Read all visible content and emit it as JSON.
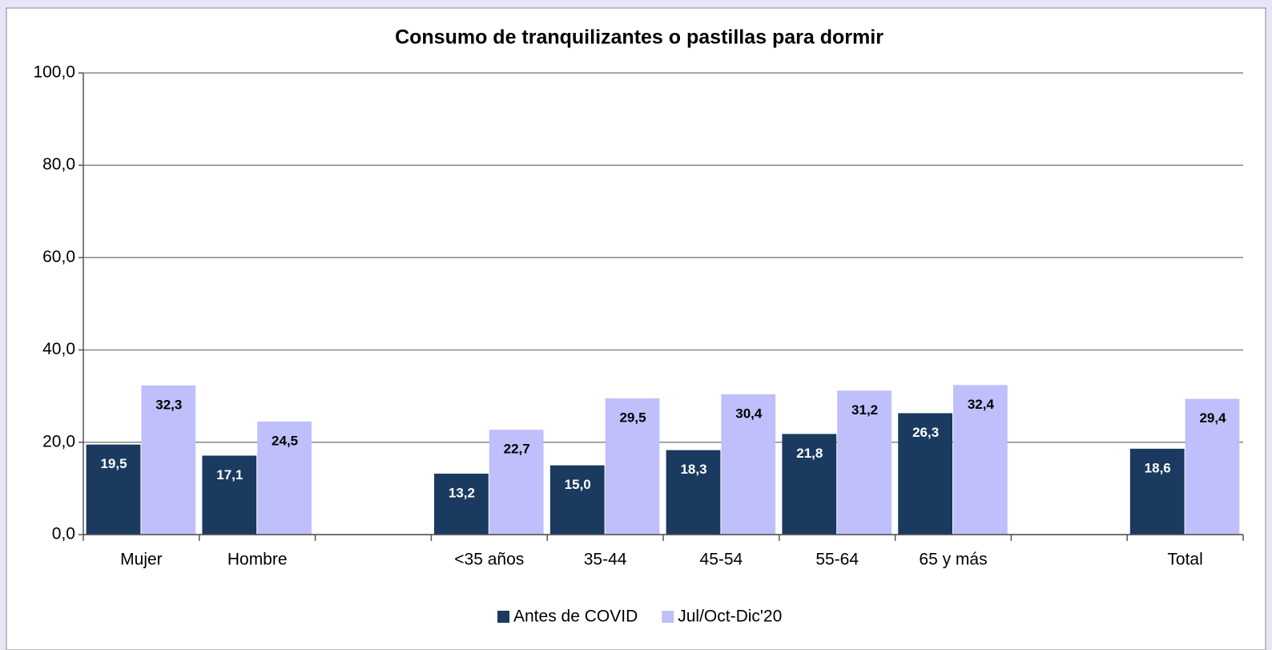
{
  "chart_data": {
    "type": "bar",
    "title": "Consumo de tranquilizantes o pastillas para dormir",
    "categories": [
      "Mujer",
      "Hombre",
      null,
      "<35 años",
      "35-44",
      "45-54",
      "55-64",
      "65 y más",
      null,
      "Total"
    ],
    "series": [
      {
        "name": "Antes de COVID",
        "color": "#1b3a5f",
        "values": [
          19.5,
          17.1,
          null,
          13.2,
          15.0,
          18.3,
          21.8,
          26.3,
          null,
          18.6
        ],
        "value_labels": [
          "19,5",
          "17,1",
          null,
          "13,2",
          "15,0",
          "18,3",
          "21,8",
          "26,3",
          null,
          "18,6"
        ]
      },
      {
        "name": "Jul/Oct-Dic'20",
        "color": "#bfbffb",
        "values": [
          32.3,
          24.5,
          null,
          22.7,
          29.5,
          30.4,
          31.2,
          32.4,
          null,
          29.4
        ],
        "value_labels": [
          "32,3",
          "24,5",
          null,
          "22,7",
          "29,5",
          "30,4",
          "31,2",
          "32,4",
          null,
          "29,4"
        ]
      }
    ],
    "ylim": [
      0,
      100
    ],
    "yticks": [
      {
        "value": 0,
        "label": "0,0"
      },
      {
        "value": 20,
        "label": "20,0"
      },
      {
        "value": 40,
        "label": "40,0"
      },
      {
        "value": 60,
        "label": "60,0"
      },
      {
        "value": 80,
        "label": "80,0"
      },
      {
        "value": 100,
        "label": "100,0"
      }
    ],
    "grid": true,
    "legend": "bottom"
  }
}
